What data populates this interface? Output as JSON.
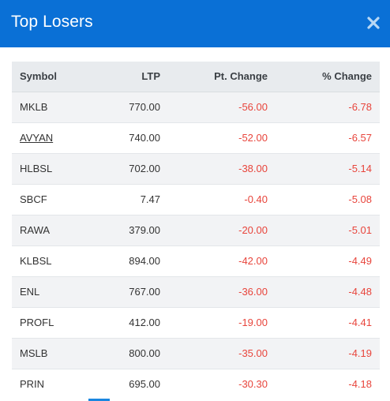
{
  "modal": {
    "title": "Top Losers",
    "close_icon": "close-icon"
  },
  "colors": {
    "header_bg": "#0a70d6",
    "negative": "#e8453c",
    "accent": "#1a87e0"
  },
  "table": {
    "headers": {
      "symbol": "Symbol",
      "ltp": "LTP",
      "pt_change": "Pt. Change",
      "pct_change": "% Change"
    },
    "rows": [
      {
        "symbol": "MKLB",
        "ltp": "770.00",
        "pt_change": "-56.00",
        "pct_change": "-6.78"
      },
      {
        "symbol": "AVYAN",
        "ltp": "740.00",
        "pt_change": "-52.00",
        "pct_change": "-6.57"
      },
      {
        "symbol": "HLBSL",
        "ltp": "702.00",
        "pt_change": "-38.00",
        "pct_change": "-5.14"
      },
      {
        "symbol": "SBCF",
        "ltp": "7.47",
        "pt_change": "-0.40",
        "pct_change": "-5.08"
      },
      {
        "symbol": "RAWA",
        "ltp": "379.00",
        "pt_change": "-20.00",
        "pct_change": "-5.01"
      },
      {
        "symbol": "KLBSL",
        "ltp": "894.00",
        "pt_change": "-42.00",
        "pct_change": "-4.49"
      },
      {
        "symbol": "ENL",
        "ltp": "767.00",
        "pt_change": "-36.00",
        "pct_change": "-4.48"
      },
      {
        "symbol": "PROFL",
        "ltp": "412.00",
        "pt_change": "-19.00",
        "pct_change": "-4.41"
      },
      {
        "symbol": "MSLB",
        "ltp": "800.00",
        "pt_change": "-35.00",
        "pct_change": "-4.19"
      },
      {
        "symbol": "PRIN",
        "ltp": "695.00",
        "pt_change": "-30.30",
        "pct_change": "-4.18"
      }
    ]
  }
}
